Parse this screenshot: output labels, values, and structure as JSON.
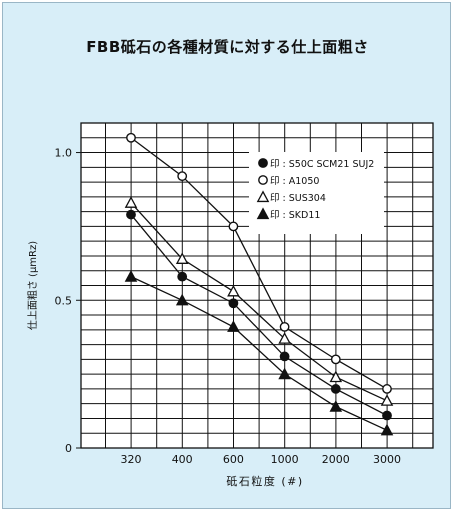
{
  "chart_data": {
    "type": "line",
    "title": "FBB砥石の各種材質に対する仕上面粗さ",
    "xlabel": "砥石粒度 (#)",
    "ylabel": "仕上面粗さ (μmRz)",
    "categories": [
      "320",
      "400",
      "600",
      "1000",
      "2000",
      "3000"
    ],
    "ylim": [
      0,
      1.1
    ],
    "yticks": [
      {
        "value": 0,
        "label": "0"
      },
      {
        "value": 0.5,
        "label": "0.5"
      },
      {
        "value": 1.0,
        "label": "1.0"
      }
    ],
    "grid": true,
    "legend_position": "top-right",
    "series": [
      {
        "name": "●印 : S50C SCM21 SUJ2",
        "marker": "filled-circle",
        "values": [
          0.79,
          0.58,
          0.49,
          0.31,
          0.2,
          0.11
        ]
      },
      {
        "name": "○印 : A1050",
        "marker": "open-circle",
        "values": [
          1.05,
          0.92,
          0.75,
          0.41,
          0.3,
          0.2
        ]
      },
      {
        "name": "△印 : SUS304",
        "marker": "open-triangle",
        "values": [
          0.83,
          0.64,
          0.53,
          0.37,
          0.24,
          0.16
        ]
      },
      {
        "name": "▲印 : SKD11",
        "marker": "filled-triangle",
        "values": [
          0.58,
          0.5,
          0.41,
          0.25,
          0.14,
          0.06
        ]
      }
    ]
  }
}
